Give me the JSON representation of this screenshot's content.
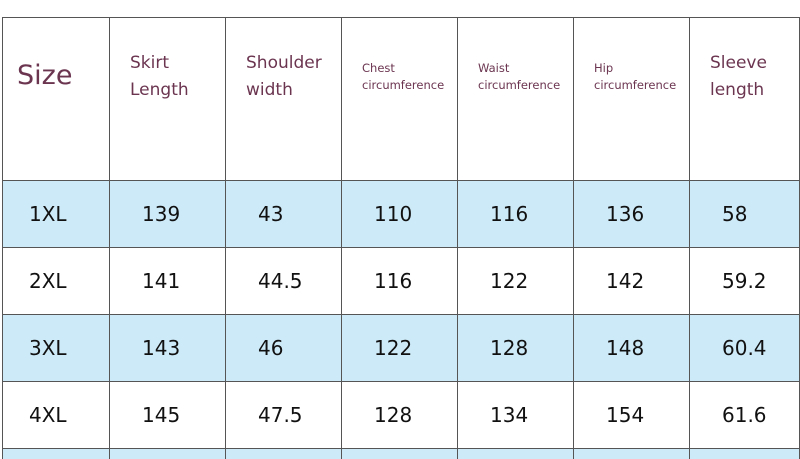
{
  "table": {
    "headers": [
      {
        "line1": "Size",
        "line2": ""
      },
      {
        "line1": "Skirt",
        "line2": "Length"
      },
      {
        "line1": "Shoulder",
        "line2": "width"
      },
      {
        "line1": "Chest",
        "line2": "circumference"
      },
      {
        "line1": "Waist",
        "line2": "circumference"
      },
      {
        "line1": "Hip",
        "line2": "circumference"
      },
      {
        "line1": "Sleeve",
        "line2": "length"
      }
    ],
    "rows": [
      [
        "1XL",
        "139",
        "43",
        "110",
        "116",
        "136",
        "58"
      ],
      [
        "2XL",
        "141",
        "44.5",
        "116",
        "122",
        "142",
        "59.2"
      ],
      [
        "3XL",
        "143",
        "46",
        "122",
        "128",
        "148",
        "60.4"
      ],
      [
        "4XL",
        "145",
        "47.5",
        "128",
        "134",
        "154",
        "61.6"
      ]
    ]
  },
  "colors": {
    "header_text": "#6b3550",
    "stripe": "#cdeaf8",
    "grid": "#555555"
  }
}
